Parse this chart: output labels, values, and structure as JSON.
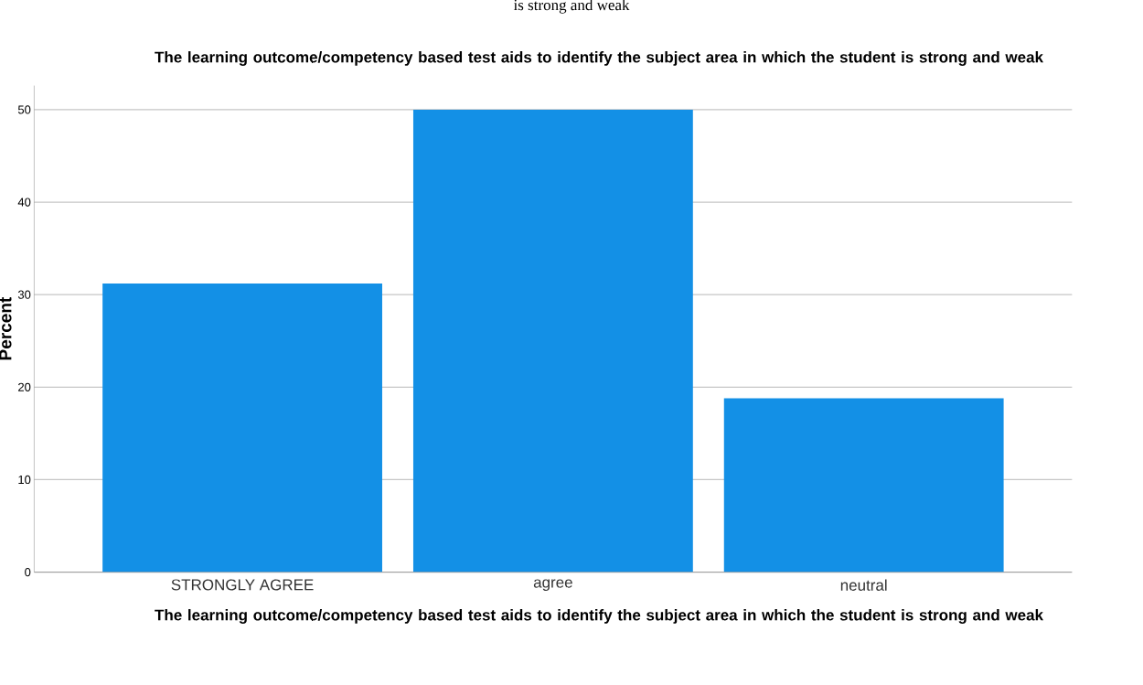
{
  "chart_data": {
    "type": "bar",
    "title": "The learning outcome/competency based test aids to identify the subject area in which the student is strong and weak",
    "xlabel": "The learning outcome/competency based test aids to identify the subject area in which the student is strong and weak",
    "ylabel": "Percent",
    "annotations": [
      "is strong and weak"
    ],
    "categories": [
      "STRONGLY AGREE",
      "agree",
      "neutral"
    ],
    "values": [
      31.2,
      50,
      18.8
    ],
    "color": "#1390e6",
    "ylim": [
      0,
      52.6
    ],
    "yticks": [
      0,
      10,
      20,
      30,
      40,
      50
    ],
    "grid": "y"
  }
}
